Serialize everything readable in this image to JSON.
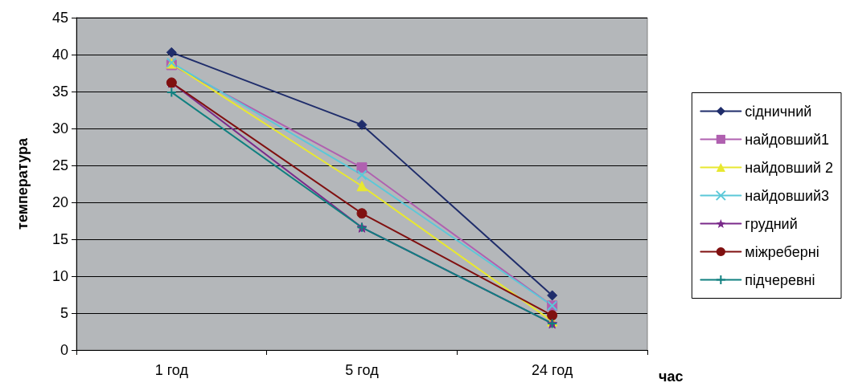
{
  "chart_data": {
    "type": "line",
    "xlabel": "час",
    "ylabel": "температура",
    "categories": [
      "1 год",
      "5 год",
      "24 год"
    ],
    "ylim": [
      0,
      45
    ],
    "yticks": [
      0,
      5,
      10,
      15,
      20,
      25,
      30,
      35,
      40,
      45
    ],
    "grid": "y",
    "legend": "right",
    "series": [
      {
        "name": "сідничний",
        "color": "#1f2d6b",
        "marker": "diamond",
        "values": [
          40.3,
          30.5,
          7.4
        ]
      },
      {
        "name": "найдовший1",
        "color": "#b060b0",
        "marker": "square",
        "values": [
          38.6,
          24.7,
          6.0
        ]
      },
      {
        "name": "найдовший 2",
        "color": "#e8e830",
        "marker": "triangle",
        "values": [
          38.8,
          22.2,
          3.9
        ]
      },
      {
        "name": "найдовший3",
        "color": "#5bc8d8",
        "marker": "cross",
        "values": [
          38.9,
          23.7,
          6.0
        ]
      },
      {
        "name": "грудний",
        "color": "#7a2a8a",
        "marker": "star",
        "values": [
          36.2,
          16.6,
          3.6
        ]
      },
      {
        "name": "міжреберні",
        "color": "#801010",
        "marker": "circle",
        "values": [
          36.2,
          18.5,
          4.7
        ]
      },
      {
        "name": "підчеревні",
        "color": "#108080",
        "marker": "plus",
        "values": [
          34.9,
          16.6,
          3.6
        ]
      }
    ]
  }
}
